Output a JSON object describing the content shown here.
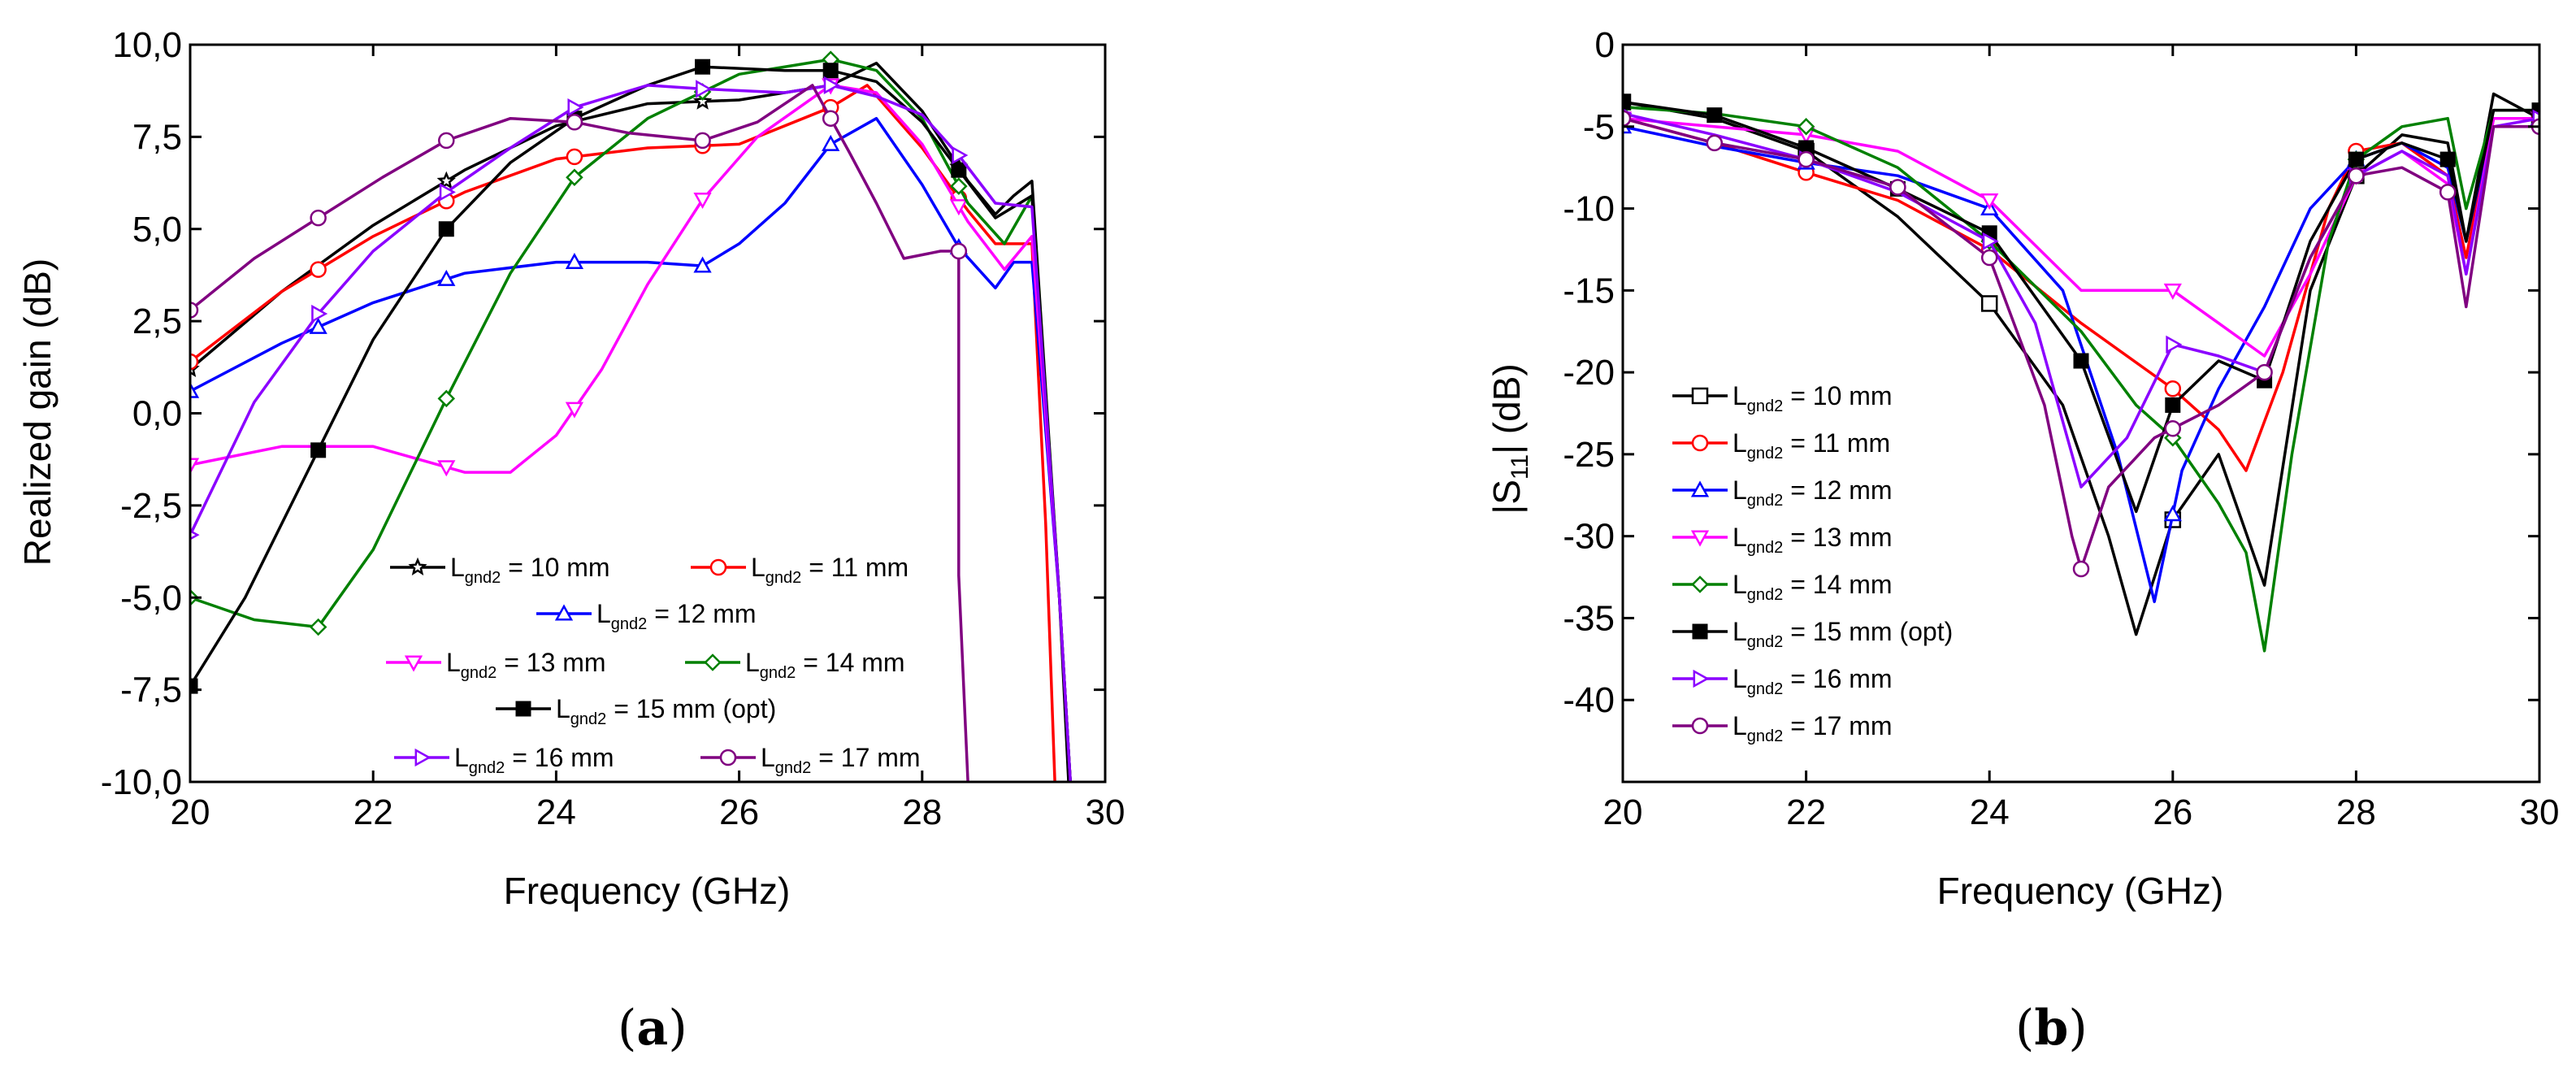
{
  "panels": {
    "a": {
      "caption": "a",
      "chart_data": {
        "type": "line",
        "title": "",
        "xlabel": "Frequency (GHz)",
        "ylabel": "Realized gain (dB)",
        "xlim": [
          20,
          30
        ],
        "ylim": [
          -10,
          10
        ],
        "xticks": [
          20,
          22,
          24,
          26,
          28,
          30
        ],
        "yticks": [
          -10,
          -7.5,
          -5,
          -2.5,
          0,
          2.5,
          5,
          7.5,
          10
        ],
        "ytick_labels": [
          "-10,0",
          "-7,5",
          "-5,0",
          "-2,5",
          "0,0",
          "2,5",
          "5,0",
          "7,5",
          "10,0"
        ],
        "series": [
          {
            "name": "L_gnd2 = 10 mm",
            "color": "#000000",
            "marker": "star",
            "markers_x": [
              20,
              22.8,
              25.6,
              28.4
            ],
            "x": [
              20,
              21,
              22,
              23,
              24,
              25,
              26,
              27,
              27.5,
              28,
              28.5,
              28.8,
              29,
              29.2,
              29.5,
              29.6
            ],
            "y": [
              1.2,
              3.3,
              5.1,
              6.6,
              7.8,
              8.4,
              8.5,
              8.9,
              9.5,
              8.2,
              6.3,
              5.4,
              5.9,
              6.3,
              -5,
              -10
            ]
          },
          {
            "name": "L_gnd2 = 11 mm",
            "color": "#ff0000",
            "marker": "circle",
            "markers_x": [
              20,
              21.4,
              22.8,
              24.2,
              25.6,
              27,
              28.4
            ],
            "x": [
              20,
              21,
              22,
              23,
              24,
              25,
              26,
              27,
              27.4,
              28,
              28.5,
              28.8,
              29.2,
              29.35,
              29.45
            ],
            "y": [
              1.4,
              3.3,
              4.8,
              6,
              6.9,
              7.2,
              7.3,
              8.3,
              8.9,
              7.2,
              5.5,
              4.6,
              4.6,
              -3,
              -10
            ]
          },
          {
            "name": "L_gnd2 = 12 mm",
            "color": "#0000ff",
            "marker": "triangle-up",
            "markers_x": [
              20,
              21.4,
              22.8,
              24.2,
              25.6,
              27,
              28.4
            ],
            "x": [
              20,
              21,
              22,
              23,
              24,
              25,
              25.6,
              26,
              26.5,
              27,
              27.5,
              28,
              28.4,
              28.8,
              29,
              29.2,
              29.5,
              29.62
            ],
            "y": [
              0.6,
              1.9,
              3,
              3.8,
              4.1,
              4.1,
              4.0,
              4.6,
              5.7,
              7.3,
              8.0,
              6.2,
              4.5,
              3.4,
              4.1,
              4.1,
              -5,
              -10
            ]
          },
          {
            "name": "L_gnd2 = 13 mm",
            "color": "#ff00ff",
            "marker": "triangle-down",
            "markers_x": [
              20,
              22.8,
              24.2,
              25.6,
              27,
              28.4
            ],
            "x": [
              20,
              21,
              22,
              23,
              23.5,
              24,
              24.5,
              25,
              25.6,
              26.2,
              27,
              27.5,
              28,
              28.5,
              28.9,
              29.2,
              29.5,
              29.62
            ],
            "y": [
              -1.4,
              -0.9,
              -0.9,
              -1.6,
              -1.6,
              -0.6,
              1.2,
              3.5,
              5.8,
              7.5,
              8.9,
              8.7,
              7.3,
              5.2,
              3.9,
              4.8,
              -5,
              -10
            ]
          },
          {
            "name": "L_gnd2 = 14 mm",
            "color": "#008000",
            "marker": "diamond",
            "markers_x": [
              20,
              21.4,
              22.8,
              24.2,
              25.6,
              27,
              28.4
            ],
            "x": [
              20,
              20.7,
              21.4,
              22,
              22.8,
              23.5,
              24.2,
              25,
              26,
              27,
              27.5,
              28,
              28.5,
              28.9,
              29.2,
              29.5,
              29.62
            ],
            "y": [
              -5.0,
              -5.6,
              -5.8,
              -3.7,
              0.4,
              3.8,
              6.4,
              8.0,
              9.2,
              9.6,
              9.3,
              8.0,
              5.7,
              4.6,
              5.9,
              -5,
              -10
            ]
          },
          {
            "name": "L_gnd2 = 15 mm (opt)",
            "color": "#000000",
            "marker": "square-filled",
            "markers_x": [
              20,
              21.4,
              22.8,
              24.2,
              25.6,
              27,
              28.4
            ],
            "x": [
              20,
              20.6,
              21.4,
              22,
              22.8,
              23.5,
              24.2,
              25,
              25.6,
              26.5,
              27,
              27.5,
              28,
              28.4,
              28.8,
              29.2,
              29.5,
              29.62
            ],
            "y": [
              -7.4,
              -5,
              -1.0,
              2.0,
              5.0,
              6.8,
              8.0,
              8.9,
              9.4,
              9.3,
              9.3,
              9.0,
              7.9,
              6.6,
              5.3,
              5.9,
              -5,
              -10
            ]
          },
          {
            "name": "L_gnd2 = 16 mm",
            "color": "#8b00ff",
            "marker": "triangle-right",
            "markers_x": [
              20,
              21.4,
              22.8,
              24.2,
              25.6,
              27,
              28.4
            ],
            "x": [
              20,
              20.7,
              21.4,
              22,
              22.8,
              23.5,
              24.2,
              25,
              25.6,
              26.5,
              27,
              27.5,
              28,
              28.4,
              28.8,
              29.2,
              29.5,
              29.62
            ],
            "y": [
              -3.3,
              0.3,
              2.7,
              4.4,
              6.0,
              7.2,
              8.3,
              8.9,
              8.8,
              8.7,
              8.9,
              8.6,
              8.1,
              7.0,
              5.7,
              5.6,
              -5,
              -10
            ]
          },
          {
            "name": "L_gnd2 = 17 mm",
            "color": "#800080",
            "marker": "circle",
            "markers_x": [
              20,
              21.4,
              22.8,
              24.2,
              25.6,
              27,
              28.4
            ],
            "x": [
              20,
              20.7,
              21.4,
              22.1,
              22.8,
              23.5,
              24.2,
              24.8,
              25.6,
              26.2,
              26.8,
              27.2,
              27.5,
              27.8,
              28.2,
              28.4,
              28.4,
              28.5
            ],
            "y": [
              2.8,
              4.2,
              5.3,
              6.4,
              7.4,
              8.0,
              7.9,
              7.6,
              7.4,
              7.9,
              8.9,
              7.1,
              5.7,
              4.2,
              4.4,
              4.4,
              -4.4,
              -10
            ]
          }
        ],
        "legend": [
          "L_gnd2 = 10 mm",
          "L_gnd2 = 11 mm",
          "L_gnd2 = 12 mm",
          "L_gnd2 = 13 mm",
          "L_gnd2 = 14 mm",
          "L_gnd2 = 15 mm (opt)",
          "L_gnd2 = 16 mm",
          "L_gnd2 = 17 mm"
        ]
      }
    },
    "b": {
      "caption": "b",
      "chart_data": {
        "type": "line",
        "title": "",
        "xlabel": "Frequency (GHz)",
        "ylabel": "|S11| (dB)",
        "xlim": [
          20,
          30
        ],
        "ylim": [
          -45,
          0
        ],
        "xticks": [
          20,
          22,
          24,
          26,
          28,
          30
        ],
        "yticks": [
          0,
          -5,
          -10,
          -15,
          -20,
          -25,
          -30,
          -35,
          -40
        ],
        "ytick_labels": [
          "0",
          "-5",
          "-10",
          "-15",
          "-20",
          "-25",
          "-30",
          "-35",
          "-40"
        ],
        "series": [
          {
            "name": "L_gnd2 = 10 mm",
            "color": "#000000",
            "marker": "square",
            "markers_x": [
              20,
              22,
              24,
              26,
              28,
              30
            ],
            "x": [
              20,
              21,
              22,
              23,
              24,
              24.8,
              25.3,
              25.6,
              26,
              26.5,
              27,
              27.5,
              28,
              28.5,
              29,
              29.2,
              29.5,
              30
            ],
            "y": [
              -3.5,
              -4.5,
              -6.5,
              -10.5,
              -15.8,
              -22,
              -30,
              -36,
              -29,
              -25,
              -33,
              -15,
              -8,
              -5.5,
              -6,
              -12,
              -3,
              -4.5
            ]
          },
          {
            "name": "L_gnd2 = 11 mm",
            "color": "#ff0000",
            "marker": "circle",
            "markers_x": [
              20,
              22,
              24,
              26,
              28,
              30
            ],
            "x": [
              20,
              21,
              22,
              23,
              24,
              25,
              26,
              26.5,
              26.8,
              27.2,
              27.7,
              28,
              28.5,
              29,
              29.2,
              29.5,
              30
            ],
            "y": [
              -4.5,
              -6,
              -7.8,
              -9.5,
              -12.5,
              -17,
              -21,
              -23.5,
              -26,
              -20,
              -10,
              -6.5,
              -6,
              -8,
              -13,
              -4.5,
              -4.5
            ]
          },
          {
            "name": "L_gnd2 = 12 mm",
            "color": "#0000ff",
            "marker": "triangle-up",
            "markers_x": [
              20,
              22,
              24,
              26,
              28,
              30
            ],
            "x": [
              20,
              21,
              22,
              23,
              24,
              24.8,
              25.4,
              25.8,
              26.1,
              26.5,
              27,
              27.5,
              28,
              28.5,
              29,
              29.2,
              29.5,
              30
            ],
            "y": [
              -5,
              -6.2,
              -7.2,
              -8,
              -10,
              -15,
              -25,
              -34,
              -26,
              -21,
              -16,
              -10,
              -7,
              -6,
              -7.5,
              -12,
              -4.5,
              -4.5
            ]
          },
          {
            "name": "L_gnd2 = 13 mm",
            "color": "#ff00ff",
            "marker": "triangle-down",
            "markers_x": [
              20,
              22,
              24,
              26,
              28,
              30
            ],
            "x": [
              20,
              21,
              22,
              23,
              24,
              25,
              26,
              26.5,
              27,
              27.5,
              28,
              28.5,
              29,
              29.2,
              29.5,
              30
            ],
            "y": [
              -4.5,
              -5,
              -5.5,
              -6.5,
              -9.5,
              -15,
              -15,
              -17,
              -19,
              -14,
              -8,
              -6.5,
              -8.5,
              -14,
              -4.5,
              -4.5
            ]
          },
          {
            "name": "L_gnd2 = 14 mm",
            "color": "#008000",
            "marker": "diamond",
            "markers_x": [
              20,
              22,
              24,
              26,
              28,
              30
            ],
            "x": [
              20,
              21,
              22,
              23,
              24,
              25,
              25.6,
              26,
              26.5,
              26.8,
              27,
              27.3,
              27.7,
              28,
              28.5,
              29,
              29.2,
              29.5,
              30
            ],
            "y": [
              -3.8,
              -4.2,
              -5,
              -7.5,
              -12,
              -17.5,
              -22,
              -24,
              -28,
              -31,
              -37,
              -25,
              -12,
              -7,
              -5,
              -4.5,
              -10,
              -4,
              -4
            ]
          },
          {
            "name": "L_gnd2 = 15 mm (opt)",
            "color": "#000000",
            "marker": "square-filled",
            "markers_x": [
              20,
              21,
              22,
              23,
              24,
              25,
              26,
              27,
              28,
              29,
              30
            ],
            "x": [
              20,
              21,
              22,
              23,
              24,
              25,
              25.6,
              26,
              26.5,
              27,
              27.5,
              28,
              28.5,
              29,
              29.2,
              29.5,
              30
            ],
            "y": [
              -3.5,
              -4.3,
              -6.3,
              -8.8,
              -11.5,
              -19.3,
              -28.5,
              -22,
              -19.3,
              -20.5,
              -12,
              -7,
              -6,
              -7,
              -12,
              -4,
              -4
            ]
          },
          {
            "name": "L_gnd2 = 16 mm",
            "color": "#8b00ff",
            "marker": "triangle-right",
            "markers_x": [
              20,
              22,
              24,
              26,
              28,
              30
            ],
            "x": [
              20,
              21,
              22,
              23,
              24,
              24.5,
              25,
              25.5,
              26,
              26.5,
              27,
              27.5,
              28,
              28.5,
              29,
              29.2,
              29.5,
              30
            ],
            "y": [
              -4.2,
              -5.5,
              -7,
              -9,
              -12,
              -17,
              -27,
              -24,
              -18.3,
              -19,
              -20,
              -13,
              -8,
              -6.5,
              -8,
              -14,
              -5,
              -4.5
            ]
          },
          {
            "name": "L_gnd2 = 17 mm",
            "color": "#800080",
            "marker": "circle",
            "markers_x": [
              20,
              21,
              22,
              23,
              24,
              25,
              26,
              27,
              28,
              29,
              30
            ],
            "x": [
              20,
              21,
              22,
              23,
              24,
              24.6,
              24.9,
              25,
              25.3,
              25.8,
              26.5,
              27,
              27.5,
              28,
              28.5,
              29,
              29.2,
              29.5,
              30
            ],
            "y": [
              -4.5,
              -6,
              -7,
              -8.7,
              -13,
              -22,
              -30,
              -32,
              -27,
              -24,
              -22,
              -20,
              -13,
              -8,
              -7.5,
              -9,
              -16,
              -5,
              -5
            ]
          }
        ],
        "legend": [
          "L_gnd2 = 10 mm",
          "L_gnd2 = 11 mm",
          "L_gnd2 = 12 mm",
          "L_gnd2 = 13 mm",
          "L_gnd2 = 14 mm",
          "L_gnd2 = 15 mm (opt)",
          "L_gnd2 = 16 mm",
          "L_gnd2 = 17 mm"
        ]
      }
    }
  }
}
